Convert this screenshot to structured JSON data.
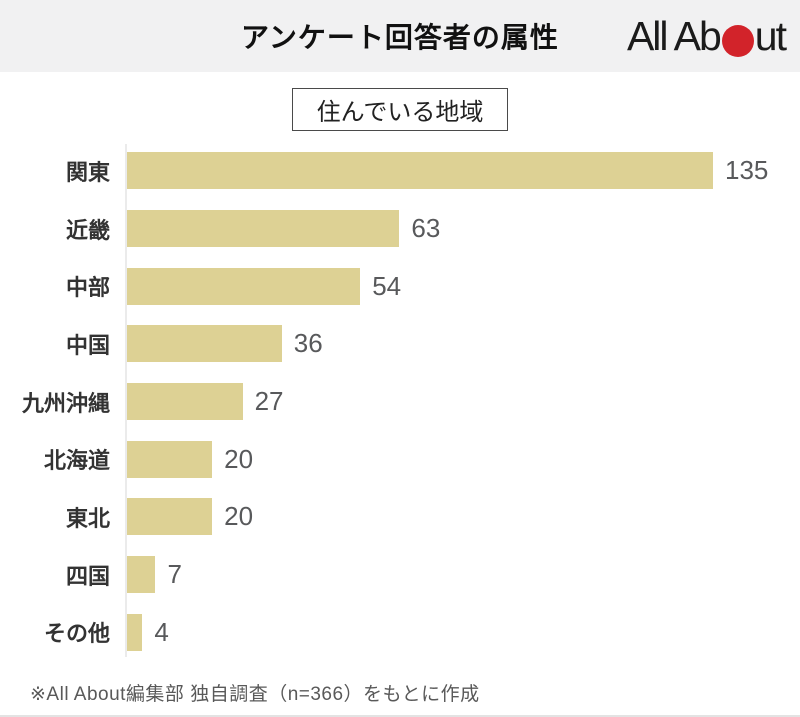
{
  "header": {
    "logo": {
      "name": "All About",
      "text_before_dot": "All Ab",
      "text_after_dot": "ut",
      "dot_color": "#d2232a"
    }
  },
  "chart_data": {
    "type": "bar",
    "orientation": "horizontal",
    "title": "アンケート回答者の属性",
    "subtitle": "住んでいる地域",
    "categories": [
      "関東",
      "近畿",
      "中部",
      "中国",
      "九州沖縄",
      "北海道",
      "東北",
      "四国",
      "その他"
    ],
    "values": [
      135,
      63,
      54,
      36,
      27,
      20,
      20,
      7,
      4
    ],
    "value_labels_shown": true,
    "xlim": [
      0,
      140
    ],
    "grid": false,
    "legend": false,
    "bar_color": "#ddd194",
    "axis_color": "#ebebeb",
    "source_note": "※All About編集部 独自調査（n=366）をもとに作成"
  }
}
